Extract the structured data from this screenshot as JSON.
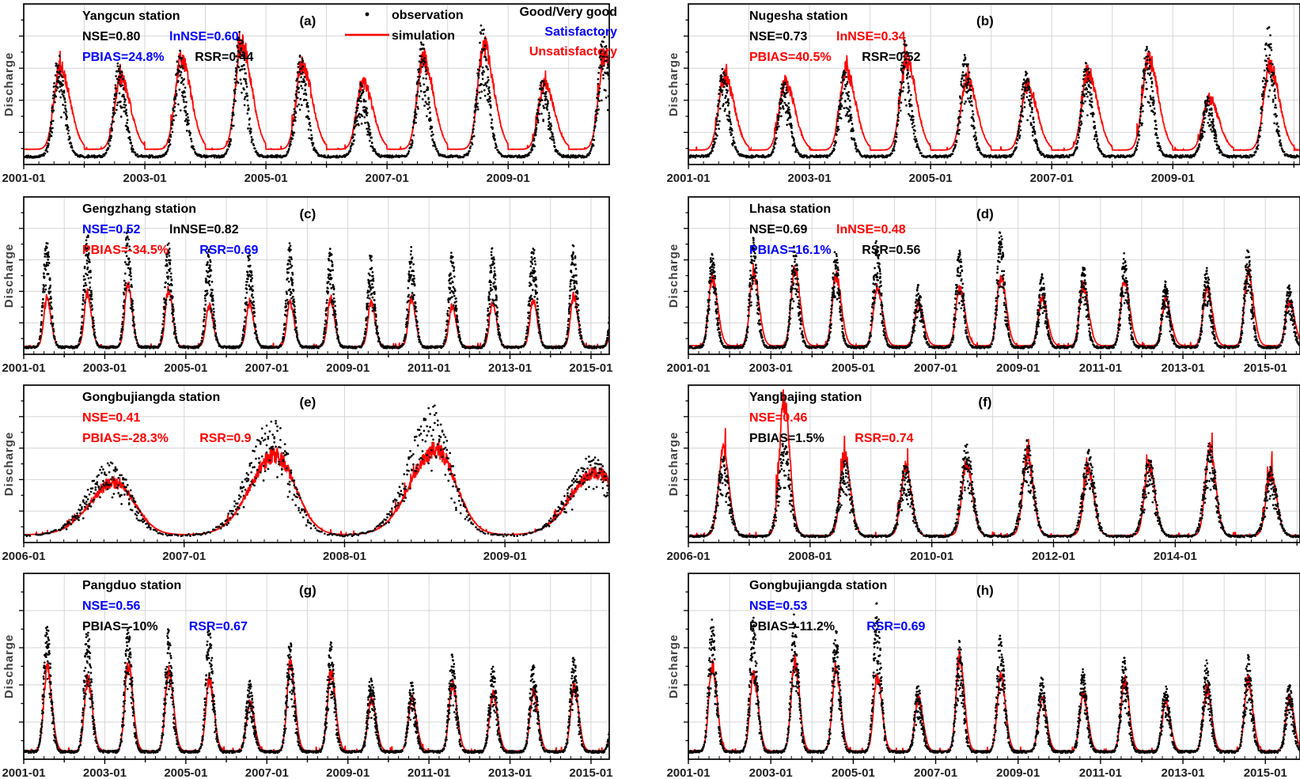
{
  "figure": {
    "y_axis_label": "Discharge",
    "legend": {
      "observation_label": "observation",
      "simulation_label": "simulation"
    },
    "quality_key": [
      {
        "label": "Good/Very good",
        "level": "good"
      },
      {
        "label": "Satisfactory",
        "level": "satisfactory"
      },
      {
        "label": "Unsatisfactory",
        "level": "unsatisfactory"
      }
    ],
    "colors": {
      "good": "#000000",
      "satisfactory": "#0000ff",
      "unsatisfactory": "#ff0000",
      "observation": "#000000",
      "simulation": "#ff0000",
      "grid": "#d6d6d6",
      "axis": "#000000",
      "tick_label": "#1f1f1f",
      "axis_label": "#3f3f3f"
    }
  },
  "chart_data": [
    {
      "type": "line+scatter",
      "panel_letter": "(a)",
      "station": "Yangcun station",
      "y_label": "Discharge",
      "stats_rows": [
        [
          {
            "text": "NSE=0.80",
            "level": "good"
          },
          {
            "text": "lnNSE=0.60",
            "level": "satisfactory"
          }
        ],
        [
          {
            "text": "PBIAS=24.8%",
            "level": "satisfactory"
          },
          {
            "text": "RSR=0.44",
            "level": "good"
          }
        ]
      ],
      "x_start": 2001,
      "x_end": 2010.67,
      "minor_step": 0.25,
      "x_ticks": [
        {
          "year": 2001,
          "label": "2001-01"
        },
        {
          "year": 2003,
          "label": "2003-01"
        },
        {
          "year": 2005,
          "label": "2005-01"
        },
        {
          "year": 2007,
          "label": "2007-01"
        },
        {
          "year": 2009,
          "label": "2009-01"
        }
      ],
      "years": [
        2001,
        2002,
        2003,
        2004,
        2005,
        2006,
        2007,
        2008,
        2009,
        2010
      ],
      "obs": {
        "base": 0.05,
        "peaks": [
          0.6,
          0.56,
          0.62,
          0.75,
          0.6,
          0.43,
          0.68,
          0.78,
          0.46,
          0.74
        ],
        "sigma": [
          0.085,
          0.105
        ],
        "center": 0.57,
        "flat": 1,
        "winter_dense": true
      },
      "sim": {
        "base": 0.095,
        "peaks": [
          0.5,
          0.44,
          0.56,
          0.65,
          0.52,
          0.42,
          0.57,
          0.64,
          0.4,
          0.6
        ],
        "sigma": [
          0.1,
          0.165
        ],
        "center": 0.6,
        "flat": 1,
        "spike": 0.18,
        "spike_prob": 0.08
      },
      "has_series_legend": true,
      "has_quality_key": true,
      "seed": 3
    },
    {
      "type": "line+scatter",
      "panel_letter": "(b)",
      "station": "Nugesha station",
      "y_label": "Discharge",
      "stats_rows": [
        [
          {
            "text": "NSE=0.73",
            "level": "good"
          },
          {
            "text": "lnNSE=0.34",
            "level": "unsatisfactory"
          }
        ],
        [
          {
            "text": "PBIAS=40.5%",
            "level": "unsatisfactory"
          },
          {
            "text": "RSR=0.52",
            "level": "good"
          }
        ]
      ],
      "x_start": 2001,
      "x_end": 2011.1,
      "minor_step": 0.25,
      "x_ticks": [
        {
          "year": 2001,
          "label": "2001-01"
        },
        {
          "year": 2003,
          "label": "2003-01"
        },
        {
          "year": 2005,
          "label": "2005-01"
        },
        {
          "year": 2007,
          "label": "2007-01"
        },
        {
          "year": 2009,
          "label": "2009-01"
        }
      ],
      "years": [
        2001,
        2002,
        2003,
        2004,
        2005,
        2006,
        2007,
        2008,
        2009,
        2010
      ],
      "obs": {
        "base": 0.05,
        "peaks": [
          0.52,
          0.46,
          0.52,
          0.68,
          0.62,
          0.5,
          0.56,
          0.64,
          0.36,
          0.78
        ],
        "sigma": [
          0.08,
          0.1
        ],
        "center": 0.57,
        "flat": 1,
        "winter_dense": true
      },
      "sim": {
        "base": 0.09,
        "peaks": [
          0.45,
          0.42,
          0.5,
          0.56,
          0.44,
          0.4,
          0.48,
          0.56,
          0.32,
          0.52
        ],
        "sigma": [
          0.1,
          0.16
        ],
        "center": 0.6,
        "flat": 1,
        "spike": 0.2,
        "spike_prob": 0.09
      },
      "has_series_legend": false,
      "has_quality_key": false,
      "seed": 7
    },
    {
      "type": "line+scatter",
      "panel_letter": "(c)",
      "station": "Gengzhang station",
      "y_label": "Discharge",
      "stats_rows": [
        [
          {
            "text": "NSE=0.52",
            "level": "satisfactory"
          },
          {
            "text": "lnNSE=0.82",
            "level": "good"
          }
        ],
        [
          {
            "text": "PBIAS=-34.5%",
            "level": "unsatisfactory"
          },
          {
            "text": "RSR=0.69",
            "level": "satisfactory"
          }
        ]
      ],
      "x_start": 2001,
      "x_end": 2015.45,
      "minor_step": 0.25,
      "x_ticks": [
        {
          "year": 2001,
          "label": "2001-01"
        },
        {
          "year": 2003,
          "label": "2003-01"
        },
        {
          "year": 2005,
          "label": "2005-01"
        },
        {
          "year": 2007,
          "label": "2007-01"
        },
        {
          "year": 2009,
          "label": "2009-01"
        },
        {
          "year": 2011,
          "label": "2011-01"
        },
        {
          "year": 2013,
          "label": "2013-01"
        },
        {
          "year": 2015,
          "label": "2015-01"
        }
      ],
      "years": [
        2001,
        2002,
        2003,
        2004,
        2005,
        2006,
        2007,
        2008,
        2009,
        2010,
        2011,
        2012,
        2013,
        2014,
        2015
      ],
      "obs": {
        "base": 0.045,
        "peaks": [
          0.66,
          0.7,
          0.72,
          0.64,
          0.6,
          0.58,
          0.62,
          0.6,
          0.56,
          0.6,
          0.58,
          0.6,
          0.64,
          0.62,
          0.58
        ],
        "sigma": [
          0.075,
          0.095
        ],
        "center": 0.56,
        "flat": 1,
        "winter_dense": false
      },
      "sim": {
        "base": 0.05,
        "peaks": [
          0.3,
          0.34,
          0.4,
          0.36,
          0.26,
          0.28,
          0.28,
          0.3,
          0.28,
          0.3,
          0.26,
          0.28,
          0.3,
          0.32,
          0.28
        ],
        "sigma": [
          0.075,
          0.1
        ],
        "center": 0.57,
        "flat": 1,
        "spike": 0.1,
        "spike_prob": 0.06
      },
      "has_series_legend": false,
      "has_quality_key": false,
      "seed": 11
    },
    {
      "type": "line+scatter",
      "panel_letter": "(d)",
      "station": "Lhasa station",
      "y_label": "Discharge",
      "stats_rows": [
        [
          {
            "text": "NSE=0.69",
            "level": "good"
          },
          {
            "text": "lnNSE=0.48",
            "level": "unsatisfactory"
          }
        ],
        [
          {
            "text": "PBIAS=16.1%",
            "level": "satisfactory"
          },
          {
            "text": "RSR=0.56",
            "level": "good"
          }
        ]
      ],
      "x_start": 2001,
      "x_end": 2015.84,
      "minor_step": 0.25,
      "x_ticks": [
        {
          "year": 2001,
          "label": "2001-01"
        },
        {
          "year": 2003,
          "label": "2003-01"
        },
        {
          "year": 2005,
          "label": "2005-01"
        },
        {
          "year": 2007,
          "label": "2007-01"
        },
        {
          "year": 2009,
          "label": "2009-01"
        },
        {
          "year": 2011,
          "label": "2011-01"
        },
        {
          "year": 2013,
          "label": "2013-01"
        },
        {
          "year": 2015,
          "label": "2015-01"
        }
      ],
      "years": [
        2001,
        2002,
        2003,
        2004,
        2005,
        2006,
        2007,
        2008,
        2009,
        2010,
        2011,
        2012,
        2013,
        2014,
        2015
      ],
      "obs": {
        "base": 0.045,
        "peaks": [
          0.58,
          0.66,
          0.62,
          0.58,
          0.66,
          0.38,
          0.58,
          0.7,
          0.44,
          0.52,
          0.56,
          0.4,
          0.48,
          0.6,
          0.38
        ],
        "sigma": [
          0.08,
          0.1
        ],
        "center": 0.57,
        "flat": 1,
        "winter_dense": false
      },
      "sim": {
        "base": 0.055,
        "peaks": [
          0.42,
          0.46,
          0.48,
          0.44,
          0.36,
          0.26,
          0.36,
          0.44,
          0.3,
          0.38,
          0.4,
          0.28,
          0.36,
          0.46,
          0.28
        ],
        "sigma": [
          0.09,
          0.13
        ],
        "center": 0.58,
        "flat": 1,
        "spike": 0.1,
        "spike_prob": 0.06
      },
      "has_series_legend": false,
      "has_quality_key": false,
      "seed": 19
    },
    {
      "type": "line+scatter",
      "panel_letter": "(e)",
      "station": "Gongbujiangda station",
      "y_label": "Discharge",
      "stats_rows": [
        [
          {
            "text": "NSE=0.41",
            "level": "unsatisfactory"
          }
        ],
        [
          {
            "text": "PBIAS=-28.3%",
            "level": "unsatisfactory"
          },
          {
            "text": "RSR=0.9",
            "level": "unsatisfactory"
          }
        ]
      ],
      "x_start": 2006,
      "x_end": 2009.65,
      "minor_step": 0.0833,
      "x_ticks": [
        {
          "year": 2006,
          "label": "2006-01"
        },
        {
          "year": 2007,
          "label": "2007-01"
        },
        {
          "year": 2008,
          "label": "2008-01"
        },
        {
          "year": 2009,
          "label": "2009-01"
        }
      ],
      "years": [
        2006,
        2007,
        2008,
        2009
      ],
      "obs": {
        "base": 0.045,
        "peaks": [
          0.45,
          0.7,
          0.78,
          0.48
        ],
        "sigma": [
          0.13,
          0.1
        ],
        "center": 0.55,
        "flat": 0.75,
        "winter_dense": false
      },
      "sim": {
        "base": 0.05,
        "peaks": [
          0.33,
          0.5,
          0.54,
          0.4
        ],
        "sigma": [
          0.14,
          0.11
        ],
        "center": 0.57,
        "flat": 0.8,
        "spike": 0.14,
        "spike_prob": 0.08
      },
      "has_series_legend": false,
      "has_quality_key": false,
      "seed": 23
    },
    {
      "type": "line+scatter",
      "panel_letter": "(f)",
      "station": "Yangbajing station",
      "y_label": "Discharge",
      "stats_rows": [
        [
          {
            "text": "NSE=0.46",
            "level": "unsatisfactory"
          }
        ],
        [
          {
            "text": "PBIAS=1.5%",
            "level": "good"
          },
          {
            "text": "RSR=0.74",
            "level": "unsatisfactory"
          }
        ]
      ],
      "x_start": 2006,
      "x_end": 2016.05,
      "minor_step": 0.25,
      "x_ticks": [
        {
          "year": 2006,
          "label": "2006-01"
        },
        {
          "year": 2008,
          "label": "2008-01"
        },
        {
          "year": 2010,
          "label": "2010-01"
        },
        {
          "year": 2012,
          "label": "2012-01"
        },
        {
          "year": 2014,
          "label": "2014-01"
        }
      ],
      "years": [
        2006,
        2007,
        2008,
        2009,
        2010,
        2011,
        2012,
        2013,
        2014,
        2015
      ],
      "obs": {
        "base": 0.04,
        "peaks": [
          0.48,
          0.6,
          0.46,
          0.44,
          0.56,
          0.58,
          0.52,
          0.48,
          0.56,
          0.42
        ],
        "sigma": [
          0.09,
          0.1
        ],
        "center": 0.57,
        "flat": 1,
        "winter_dense": false
      },
      "sim": {
        "base": 0.045,
        "peaks": [
          0.55,
          0.85,
          0.5,
          0.44,
          0.46,
          0.5,
          0.42,
          0.44,
          0.54,
          0.4
        ],
        "sigma": [
          0.075,
          0.095
        ],
        "center": 0.57,
        "flat": 1,
        "spike": 0.3,
        "spike_prob": 0.15
      },
      "has_series_legend": false,
      "has_quality_key": false,
      "seed": 29
    },
    {
      "type": "line+scatter",
      "panel_letter": "(g)",
      "station": "Pangduo station",
      "y_label": "Discharge",
      "stats_rows": [
        [
          {
            "text": "NSE=0.56",
            "level": "satisfactory"
          }
        ],
        [
          {
            "text": "PBIAS=-10%",
            "level": "good"
          },
          {
            "text": "RSR=0.67",
            "level": "satisfactory"
          }
        ]
      ],
      "x_start": 2001,
      "x_end": 2015.45,
      "minor_step": 0.25,
      "x_ticks": [
        {
          "year": 2001,
          "label": "2001-01"
        },
        {
          "year": 2003,
          "label": "2003-01"
        },
        {
          "year": 2005,
          "label": "2005-01"
        },
        {
          "year": 2007,
          "label": "2007-01"
        },
        {
          "year": 2009,
          "label": "2009-01"
        },
        {
          "year": 2011,
          "label": "2011-01"
        },
        {
          "year": 2013,
          "label": "2013-01"
        },
        {
          "year": 2015,
          "label": "2015-01"
        }
      ],
      "years": [
        2001,
        2002,
        2003,
        2004,
        2005,
        2006,
        2007,
        2008,
        2009,
        2010,
        2011,
        2012,
        2013,
        2014,
        2015
      ],
      "obs": {
        "base": 0.04,
        "peaks": [
          0.66,
          0.64,
          0.66,
          0.62,
          0.64,
          0.36,
          0.58,
          0.56,
          0.4,
          0.36,
          0.5,
          0.44,
          0.46,
          0.5,
          0.38
        ],
        "sigma": [
          0.08,
          0.1
        ],
        "center": 0.57,
        "flat": 1,
        "winter_dense": false
      },
      "sim": {
        "base": 0.045,
        "peaks": [
          0.44,
          0.38,
          0.46,
          0.44,
          0.38,
          0.26,
          0.46,
          0.42,
          0.28,
          0.28,
          0.36,
          0.3,
          0.32,
          0.34,
          0.26
        ],
        "sigma": [
          0.085,
          0.115
        ],
        "center": 0.58,
        "flat": 1,
        "spike": 0.08,
        "spike_prob": 0.05
      },
      "has_series_legend": false,
      "has_quality_key": false,
      "seed": 31
    },
    {
      "type": "line+scatter",
      "panel_letter": "(h)",
      "station": "Gongbujiangda station",
      "y_label": "Discharge",
      "stats_rows": [
        [
          {
            "text": "NSE=0.53",
            "level": "satisfactory"
          }
        ],
        [
          {
            "text": "PBIAS=-11.2%",
            "level": "good"
          },
          {
            "text": "RSR=0.69",
            "level": "satisfactory"
          }
        ]
      ],
      "x_start": 2001,
      "x_end": 2015.84,
      "minor_step": 0.25,
      "x_ticks": [
        {
          "year": 2001,
          "label": "2001-01"
        },
        {
          "year": 2003,
          "label": "2003-01"
        },
        {
          "year": 2005,
          "label": "2005-01"
        },
        {
          "year": 2007,
          "label": "2007-01"
        },
        {
          "year": 2009,
          "label": "2009-01"
        },
        {
          "year": 2011,
          "label": "2011-01"
        },
        {
          "year": 2013,
          "label": "2013-01"
        },
        {
          "year": 2015,
          "label": "2015-01"
        }
      ],
      "years": [
        2001,
        2002,
        2003,
        2004,
        2005,
        2006,
        2007,
        2008,
        2009,
        2010,
        2011,
        2012,
        2013,
        2014,
        2015
      ],
      "obs": {
        "base": 0.04,
        "peaks": [
          0.7,
          0.68,
          0.7,
          0.64,
          0.76,
          0.34,
          0.56,
          0.6,
          0.38,
          0.42,
          0.48,
          0.36,
          0.46,
          0.5,
          0.36
        ],
        "sigma": [
          0.08,
          0.1
        ],
        "center": 0.57,
        "flat": 1,
        "winter_dense": false
      },
      "sim": {
        "base": 0.045,
        "peaks": [
          0.46,
          0.4,
          0.48,
          0.44,
          0.4,
          0.28,
          0.5,
          0.4,
          0.28,
          0.3,
          0.38,
          0.26,
          0.33,
          0.38,
          0.28
        ],
        "sigma": [
          0.085,
          0.115
        ],
        "center": 0.58,
        "flat": 1,
        "spike": 0.08,
        "spike_prob": 0.05
      },
      "has_series_legend": false,
      "has_quality_key": false,
      "seed": 37
    }
  ]
}
